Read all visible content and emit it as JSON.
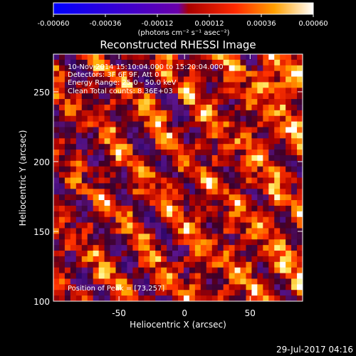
{
  "chart_data": {
    "type": "heatmap",
    "title": "Reconstructed RHESSI Image",
    "xlabel": "Heliocentric X (arcsec)",
    "ylabel": "Heliocentric Y (arcsec)",
    "xlim": [
      -100,
      90
    ],
    "ylim": [
      100,
      277
    ],
    "xticks": [
      -50,
      0,
      50
    ],
    "yticks": [
      100,
      150,
      200,
      250
    ],
    "colorbar": {
      "range": [
        -0.0006,
        0.0006
      ],
      "ticks": [
        "-0.00060",
        "-0.00036",
        "-0.00012",
        "0.00012",
        "0.00036",
        "0.00060"
      ],
      "unit_label": "(photons cm⁻² s⁻¹ asec⁻²)",
      "colors": [
        "#0000ff",
        "#7700cc",
        "#ff0000",
        "#ff8800",
        "#ffff66",
        "#ffffff"
      ]
    },
    "annotations": [
      "10-Nov-2014 15:10:04.000 to 15:20:04.000",
      "Detectors: 3F 6F 9F, Att 0",
      "Energy Range: 25.0 - 50.0 keV",
      "Clean     Total counts: 8.36E+03"
    ],
    "peak_label": "Position of Peak = [73,257]",
    "peak_position": [
      73,
      257
    ]
  },
  "footer": {
    "date": "29-Jul-2017 04:16"
  }
}
